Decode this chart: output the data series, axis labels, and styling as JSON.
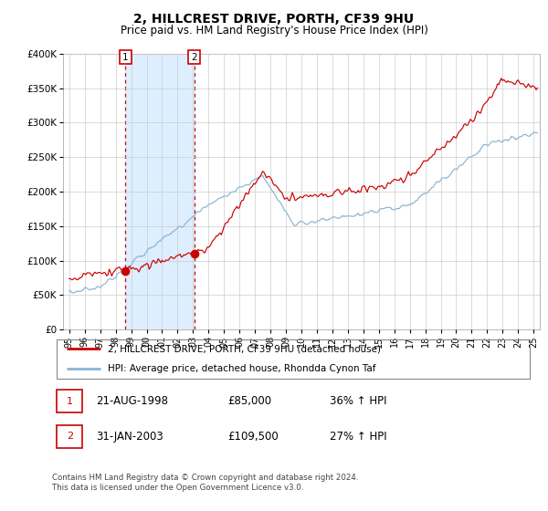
{
  "title": "2, HILLCREST DRIVE, PORTH, CF39 9HU",
  "subtitle": "Price paid vs. HM Land Registry's House Price Index (HPI)",
  "ylim": [
    0,
    400000
  ],
  "ytick_vals": [
    0,
    50000,
    100000,
    150000,
    200000,
    250000,
    300000,
    350000,
    400000
  ],
  "ytick_labels": [
    "£0",
    "£50K",
    "£100K",
    "£150K",
    "£200K",
    "£250K",
    "£300K",
    "£350K",
    "£400K"
  ],
  "xlim": [
    1994.6,
    2025.4
  ],
  "xtick_vals": [
    1995,
    1996,
    1997,
    1998,
    1999,
    2000,
    2001,
    2002,
    2003,
    2004,
    2005,
    2006,
    2007,
    2008,
    2009,
    2010,
    2011,
    2012,
    2013,
    2014,
    2015,
    2016,
    2017,
    2018,
    2019,
    2020,
    2021,
    2022,
    2023,
    2024,
    2025
  ],
  "xtick_labels": [
    "95",
    "96",
    "97",
    "98",
    "99",
    "00",
    "01",
    "02",
    "03",
    "04",
    "05",
    "06",
    "07",
    "08",
    "09",
    "10",
    "11",
    "12",
    "13",
    "14",
    "15",
    "16",
    "17",
    "18",
    "19",
    "20",
    "21",
    "22",
    "23",
    "24",
    "25"
  ],
  "sale1_x": 1998.64,
  "sale1_y": 85000,
  "sale2_x": 2003.08,
  "sale2_y": 109500,
  "red_color": "#cc0000",
  "blue_color": "#89b4d4",
  "shade_color": "#ddeeff",
  "grid_color": "#cccccc",
  "legend_line1": "2, HILLCREST DRIVE, PORTH, CF39 9HU (detached house)",
  "legend_line2": "HPI: Average price, detached house, Rhondda Cynon Taf",
  "table_row1": [
    "1",
    "21-AUG-1998",
    "£85,000",
    "36% ↑ HPI"
  ],
  "table_row2": [
    "2",
    "31-JAN-2003",
    "£109,500",
    "27% ↑ HPI"
  ],
  "footer": "Contains HM Land Registry data © Crown copyright and database right 2024.\nThis data is licensed under the Open Government Licence v3.0."
}
